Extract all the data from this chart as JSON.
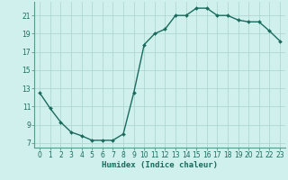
{
  "x": [
    0,
    1,
    2,
    3,
    4,
    5,
    6,
    7,
    8,
    9,
    10,
    11,
    12,
    13,
    14,
    15,
    16,
    17,
    18,
    19,
    20,
    21,
    22,
    23
  ],
  "y": [
    12.5,
    10.8,
    9.3,
    8.2,
    7.8,
    7.3,
    7.3,
    7.3,
    8.0,
    12.5,
    17.8,
    19.0,
    19.5,
    21.0,
    21.0,
    21.8,
    21.8,
    21.0,
    21.0,
    20.5,
    20.3,
    20.3,
    19.3,
    18.2
  ],
  "line_color": "#1a6b5e",
  "marker": "D",
  "marker_size": 2.0,
  "bg_color": "#cff0ec",
  "grid_color": "#b0d8d2",
  "xlabel": "Humidex (Indice chaleur)",
  "xlim": [
    -0.5,
    23.5
  ],
  "ylim": [
    6.5,
    22.5
  ],
  "yticks": [
    7,
    9,
    11,
    13,
    15,
    17,
    19,
    21
  ],
  "xticks": [
    0,
    1,
    2,
    3,
    4,
    5,
    6,
    7,
    8,
    9,
    10,
    11,
    12,
    13,
    14,
    15,
    16,
    17,
    18,
    19,
    20,
    21,
    22,
    23
  ],
  "tick_fontsize": 5.5,
  "xlabel_fontsize": 6.5,
  "line_width": 1.0,
  "axis_color": "#1a6b5e",
  "spine_color": "#5a9a8a"
}
